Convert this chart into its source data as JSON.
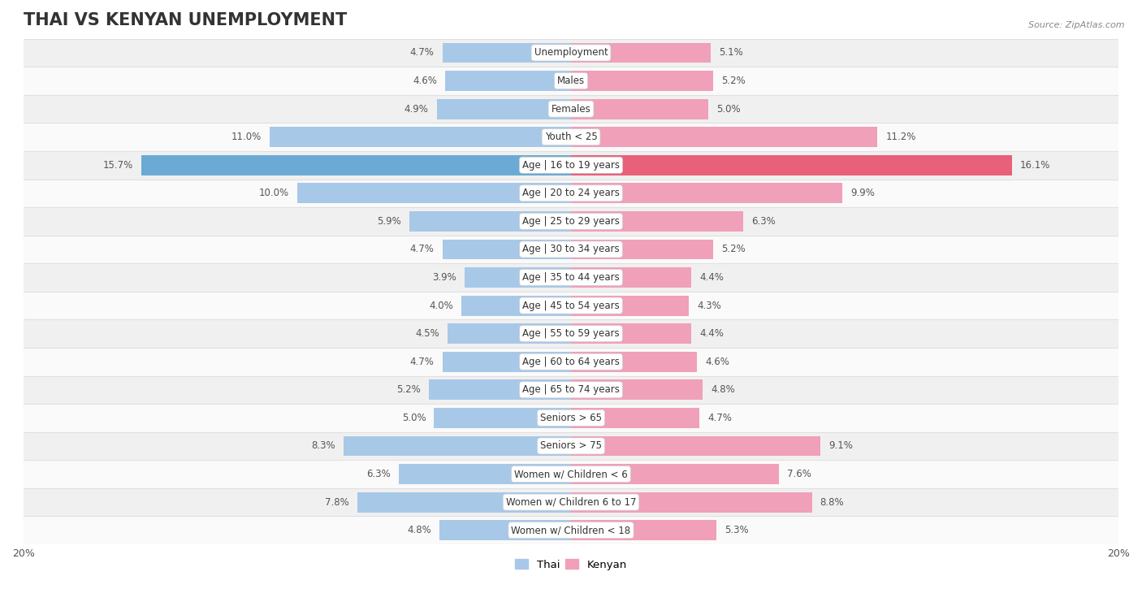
{
  "title": "THAI VS KENYAN UNEMPLOYMENT",
  "source": "Source: ZipAtlas.com",
  "categories": [
    "Unemployment",
    "Males",
    "Females",
    "Youth < 25",
    "Age | 16 to 19 years",
    "Age | 20 to 24 years",
    "Age | 25 to 29 years",
    "Age | 30 to 34 years",
    "Age | 35 to 44 years",
    "Age | 45 to 54 years",
    "Age | 55 to 59 years",
    "Age | 60 to 64 years",
    "Age | 65 to 74 years",
    "Seniors > 65",
    "Seniors > 75",
    "Women w/ Children < 6",
    "Women w/ Children 6 to 17",
    "Women w/ Children < 18"
  ],
  "thai_values": [
    4.7,
    4.6,
    4.9,
    11.0,
    15.7,
    10.0,
    5.9,
    4.7,
    3.9,
    4.0,
    4.5,
    4.7,
    5.2,
    5.0,
    8.3,
    6.3,
    7.8,
    4.8
  ],
  "kenyan_values": [
    5.1,
    5.2,
    5.0,
    11.2,
    16.1,
    9.9,
    6.3,
    5.2,
    4.4,
    4.3,
    4.4,
    4.6,
    4.8,
    4.7,
    9.1,
    7.6,
    8.8,
    5.3
  ],
  "thai_color": "#a8c8e8",
  "kenyan_color": "#f0a0b8",
  "thai_highlight_color": "#6aaad4",
  "kenyan_highlight_color": "#e8607a",
  "bar_height": 0.72,
  "xlim": 20,
  "bg_color": "#ffffff",
  "row_colors": [
    "#f0f0f0",
    "#fafafa"
  ],
  "row_separator_color": "#e0e0e0",
  "title_fontsize": 15,
  "label_fontsize": 8.5,
  "value_fontsize": 8.5,
  "axis_label_fontsize": 9
}
